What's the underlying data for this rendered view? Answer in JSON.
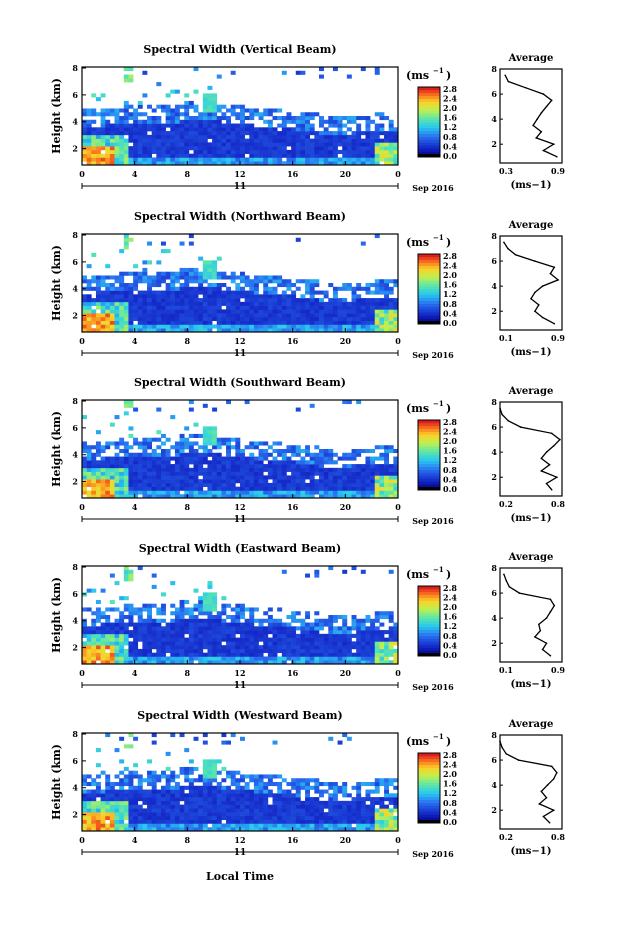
{
  "figure": {
    "xlabel": "Local Time",
    "date_label": "Sep 2016",
    "day_label": "11",
    "unit_label": "(ms",
    "unit_exp": "−1",
    "avg_title": "Average"
  },
  "chart_data": [
    {
      "type": "heatmap",
      "title": "Spectral Width (Vertical Beam)",
      "ylabel": "Height (km)",
      "xticks": [
        "0",
        "4",
        "8",
        "12",
        "16",
        "20",
        "0"
      ],
      "yticks": [
        "2",
        "4",
        "6",
        "8"
      ],
      "colorbar_ticks": [
        "0.0",
        "0.4",
        "0.8",
        "1.2",
        "1.6",
        "2.0",
        "2.4",
        "2.8"
      ],
      "profile": {
        "title": "Average",
        "xlabel": "(ms−1)",
        "xlim": [
          0.3,
          0.9
        ],
        "xtick_labels": [
          "0.3",
          "0.9"
        ],
        "ylim": [
          0.5,
          8
        ],
        "heights": [
          1.0,
          1.5,
          2.0,
          2.5,
          3.0,
          3.5,
          4.0,
          4.5,
          5.0,
          5.5,
          6.0,
          6.5,
          7.0,
          7.5
        ],
        "values": [
          0.85,
          0.72,
          0.82,
          0.65,
          0.7,
          0.62,
          0.66,
          0.7,
          0.75,
          0.8,
          0.72,
          0.55,
          0.38,
          0.35
        ]
      }
    },
    {
      "type": "heatmap",
      "title": "Spectral Width (Northward Beam)",
      "ylabel": "Height (km)",
      "xticks": [
        "0",
        "4",
        "8",
        "12",
        "16",
        "20",
        "0"
      ],
      "yticks": [
        "2",
        "4",
        "6",
        "8"
      ],
      "colorbar_ticks": [
        "0.0",
        "0.4",
        "0.8",
        "1.2",
        "1.6",
        "2.0",
        "2.4",
        "2.8"
      ],
      "profile": {
        "title": "Average",
        "xlabel": "(ms−1)",
        "xlim": [
          0.1,
          0.9
        ],
        "xtick_labels": [
          "0.1",
          "0.9"
        ],
        "ylim": [
          0.5,
          8
        ],
        "heights": [
          1.0,
          1.5,
          2.0,
          2.5,
          3.0,
          3.5,
          4.0,
          4.5,
          5.0,
          5.5,
          6.0,
          6.5,
          7.0,
          7.5
        ],
        "values": [
          0.8,
          0.65,
          0.55,
          0.6,
          0.5,
          0.55,
          0.65,
          0.85,
          0.75,
          0.8,
          0.55,
          0.3,
          0.2,
          0.15
        ]
      }
    },
    {
      "type": "heatmap",
      "title": "Spectral Width (Southward Beam)",
      "ylabel": "Height (km)",
      "xticks": [
        "0",
        "4",
        "8",
        "12",
        "16",
        "20",
        "0"
      ],
      "yticks": [
        "2",
        "4",
        "6",
        "8"
      ],
      "colorbar_ticks": [
        "0.0",
        "0.4",
        "0.8",
        "1.2",
        "1.6",
        "2.0",
        "2.4",
        "2.8"
      ],
      "profile": {
        "title": "Average",
        "xlabel": "(ms−1)",
        "xlim": [
          0.2,
          0.8
        ],
        "xtick_labels": [
          "0.2",
          "0.8"
        ],
        "ylim": [
          0.5,
          8
        ],
        "heights": [
          1.0,
          1.5,
          2.0,
          2.5,
          3.0,
          3.5,
          4.0,
          4.5,
          5.0,
          5.5,
          6.0,
          6.5,
          7.0,
          7.5
        ],
        "values": [
          0.7,
          0.65,
          0.75,
          0.6,
          0.68,
          0.6,
          0.65,
          0.72,
          0.78,
          0.7,
          0.4,
          0.28,
          0.22,
          0.2
        ]
      }
    },
    {
      "type": "heatmap",
      "title": "Spectral Width (Eastward Beam)",
      "ylabel": "Height (km)",
      "xticks": [
        "0",
        "4",
        "8",
        "12",
        "16",
        "20",
        "0"
      ],
      "yticks": [
        "2",
        "4",
        "6",
        "8"
      ],
      "colorbar_ticks": [
        "0.0",
        "0.4",
        "0.8",
        "1.2",
        "1.6",
        "2.0",
        "2.4",
        "2.8"
      ],
      "profile": {
        "title": "Average",
        "xlabel": "(ms−1)",
        "xlim": [
          0.1,
          0.9
        ],
        "xtick_labels": [
          "0.1",
          "0.9"
        ],
        "ylim": [
          0.5,
          8
        ],
        "heights": [
          1.0,
          1.5,
          2.0,
          2.5,
          3.0,
          3.5,
          4.0,
          4.5,
          5.0,
          5.5,
          6.0,
          6.5,
          7.0,
          7.5
        ],
        "values": [
          0.75,
          0.65,
          0.7,
          0.55,
          0.62,
          0.6,
          0.7,
          0.75,
          0.8,
          0.75,
          0.35,
          0.22,
          0.18,
          0.15
        ]
      }
    },
    {
      "type": "heatmap",
      "title": "Spectral Width (Westward Beam)",
      "ylabel": "Height (km)",
      "xticks": [
        "0",
        "4",
        "8",
        "12",
        "16",
        "20",
        "0"
      ],
      "yticks": [
        "2",
        "4",
        "6",
        "8"
      ],
      "colorbar_ticks": [
        "0.0",
        "0.4",
        "0.8",
        "1.2",
        "1.6",
        "2.0",
        "2.4",
        "2.8"
      ],
      "profile": {
        "title": "Average",
        "xlabel": "(ms−1)",
        "xlim": [
          0.2,
          0.8
        ],
        "xtick_labels": [
          "0.2",
          "0.8"
        ],
        "ylim": [
          0.5,
          8
        ],
        "heights": [
          1.0,
          1.5,
          2.0,
          2.5,
          3.0,
          3.5,
          4.0,
          4.5,
          5.0,
          5.5,
          6.0,
          6.5,
          7.0,
          7.5
        ],
        "values": [
          0.68,
          0.62,
          0.72,
          0.58,
          0.65,
          0.6,
          0.66,
          0.72,
          0.75,
          0.7,
          0.38,
          0.26,
          0.22,
          0.2
        ]
      }
    }
  ]
}
